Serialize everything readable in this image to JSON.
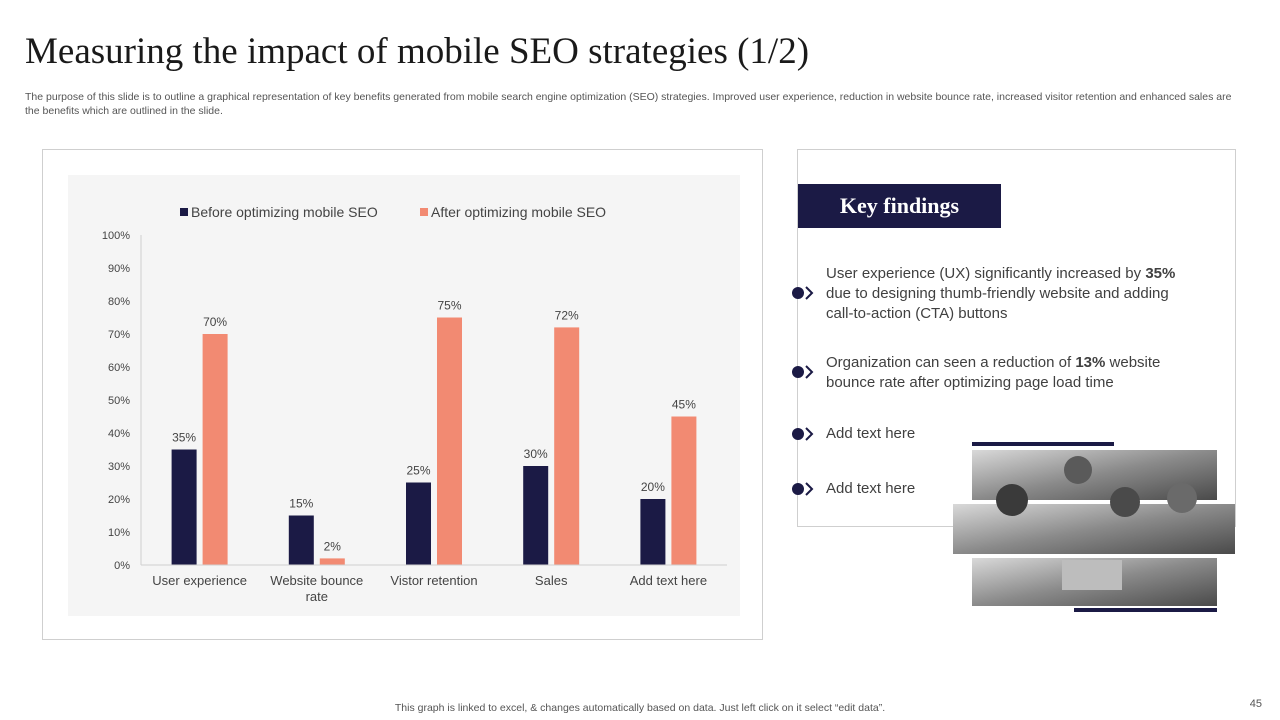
{
  "title": "Measuring the impact of mobile SEO strategies (1/2)",
  "subtitle": "The purpose of this slide is to outline a graphical representation of key benefits generated from mobile search engine optimization (SEO) strategies. Improved user experience, reduction in website bounce rate, increased visitor retention and enhanced sales are the benefits which are outlined in the slide.",
  "colors": {
    "before": "#1b1a45",
    "after": "#f28a72",
    "accent": "#1b1a45"
  },
  "chart_data": {
    "type": "bar",
    "categories": [
      "User experience",
      "Website bounce rate",
      "Vistor retention",
      "Sales",
      "Add text here"
    ],
    "category_lines": [
      [
        "User experience"
      ],
      [
        "Website bounce",
        "rate"
      ],
      [
        "Vistor retention"
      ],
      [
        "Sales"
      ],
      [
        "Add text here"
      ]
    ],
    "series": [
      {
        "name": "Before optimizing mobile SEO",
        "values": [
          35,
          15,
          25,
          30,
          20
        ],
        "labels": [
          "35%",
          "15%",
          "25%",
          "30%",
          "20%"
        ]
      },
      {
        "name": "After optimizing mobile SEO",
        "values": [
          70,
          2,
          75,
          72,
          45
        ],
        "labels": [
          "70%",
          "2%",
          "75%",
          "72%",
          "45%"
        ]
      }
    ],
    "ylim": [
      0,
      100
    ],
    "yticks": [
      0,
      10,
      20,
      30,
      40,
      50,
      60,
      70,
      80,
      90,
      100
    ],
    "ytick_labels": [
      "0%",
      "10%",
      "20%",
      "30%",
      "40%",
      "50%",
      "60%",
      "70%",
      "80%",
      "90%",
      "100%"
    ],
    "legend": "top",
    "grid": false
  },
  "findings": {
    "heading": "Key findings",
    "items": [
      {
        "pre": "User experience (UX) significantly increased by ",
        "bold": "35%",
        "post": " due to designing thumb-friendly  website and adding call-to-action (CTA) buttons"
      },
      {
        "pre": "Organization can seen a reduction of ",
        "bold": "13%",
        "post": " website bounce rate after optimizing page load time"
      },
      {
        "pre": "Add text here",
        "bold": "",
        "post": ""
      },
      {
        "pre": "Add text here",
        "bold": "",
        "post": ""
      }
    ]
  },
  "footer": "This graph is linked to excel, & changes automatically based on data. Just left click on it select “edit data”.",
  "page_number": "45"
}
